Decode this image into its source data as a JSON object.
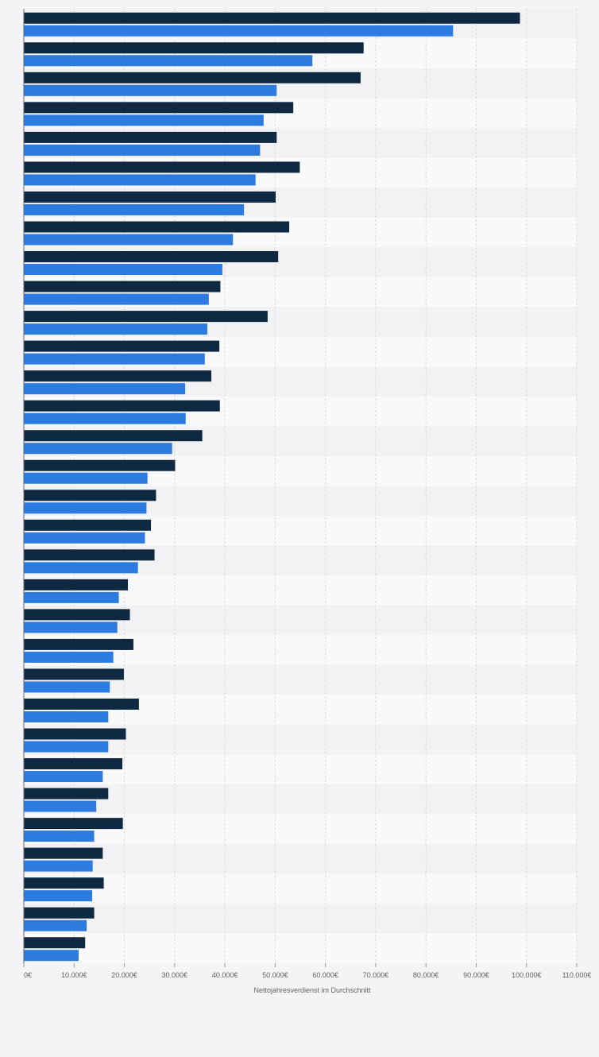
{
  "chart_data": {
    "type": "bar",
    "orientation": "horizontal",
    "xlabel": "Nettojahresverdienst im Durchschnitt",
    "ylabel": "",
    "xlim": [
      0,
      110000
    ],
    "x_ticks": [
      0,
      10000,
      20000,
      30000,
      40000,
      50000,
      60000,
      70000,
      80000,
      90000,
      100000,
      110000
    ],
    "x_tick_labels": [
      "0€",
      "10.000€",
      "20.000€",
      "30.000€",
      "40.000€",
      "50.000€",
      "60.000€",
      "70.000€",
      "80.000€",
      "90.000€",
      "100.000€",
      "110.000€"
    ],
    "categories": [
      "",
      "",
      "",
      "",
      "",
      "",
      "",
      "",
      "",
      "",
      "",
      "",
      "",
      "",
      "",
      "",
      "",
      "",
      "",
      "",
      "",
      "",
      "",
      "",
      "",
      "",
      "",
      "",
      "",
      "",
      "",
      ""
    ],
    "series": [
      {
        "color": "#0f2942",
        "values": [
          98700,
          67600,
          67000,
          53600,
          50300,
          54900,
          50100,
          52800,
          50600,
          39100,
          48500,
          38900,
          37300,
          39000,
          35500,
          30100,
          26300,
          25300,
          26000,
          20700,
          21100,
          21800,
          19900,
          22900,
          20300,
          19600,
          16800,
          19700,
          15700,
          15900,
          14000,
          12200
        ]
      },
      {
        "color": "#2c7be0",
        "values": [
          85400,
          57400,
          50300,
          47700,
          47000,
          46100,
          43800,
          41600,
          39500,
          36800,
          36500,
          36000,
          32100,
          32200,
          29500,
          24600,
          24400,
          24100,
          22700,
          18900,
          18600,
          17800,
          17100,
          16800,
          16800,
          15700,
          14400,
          14000,
          13700,
          13600,
          12500,
          10900
        ]
      }
    ],
    "grid": true,
    "legend": "none"
  }
}
